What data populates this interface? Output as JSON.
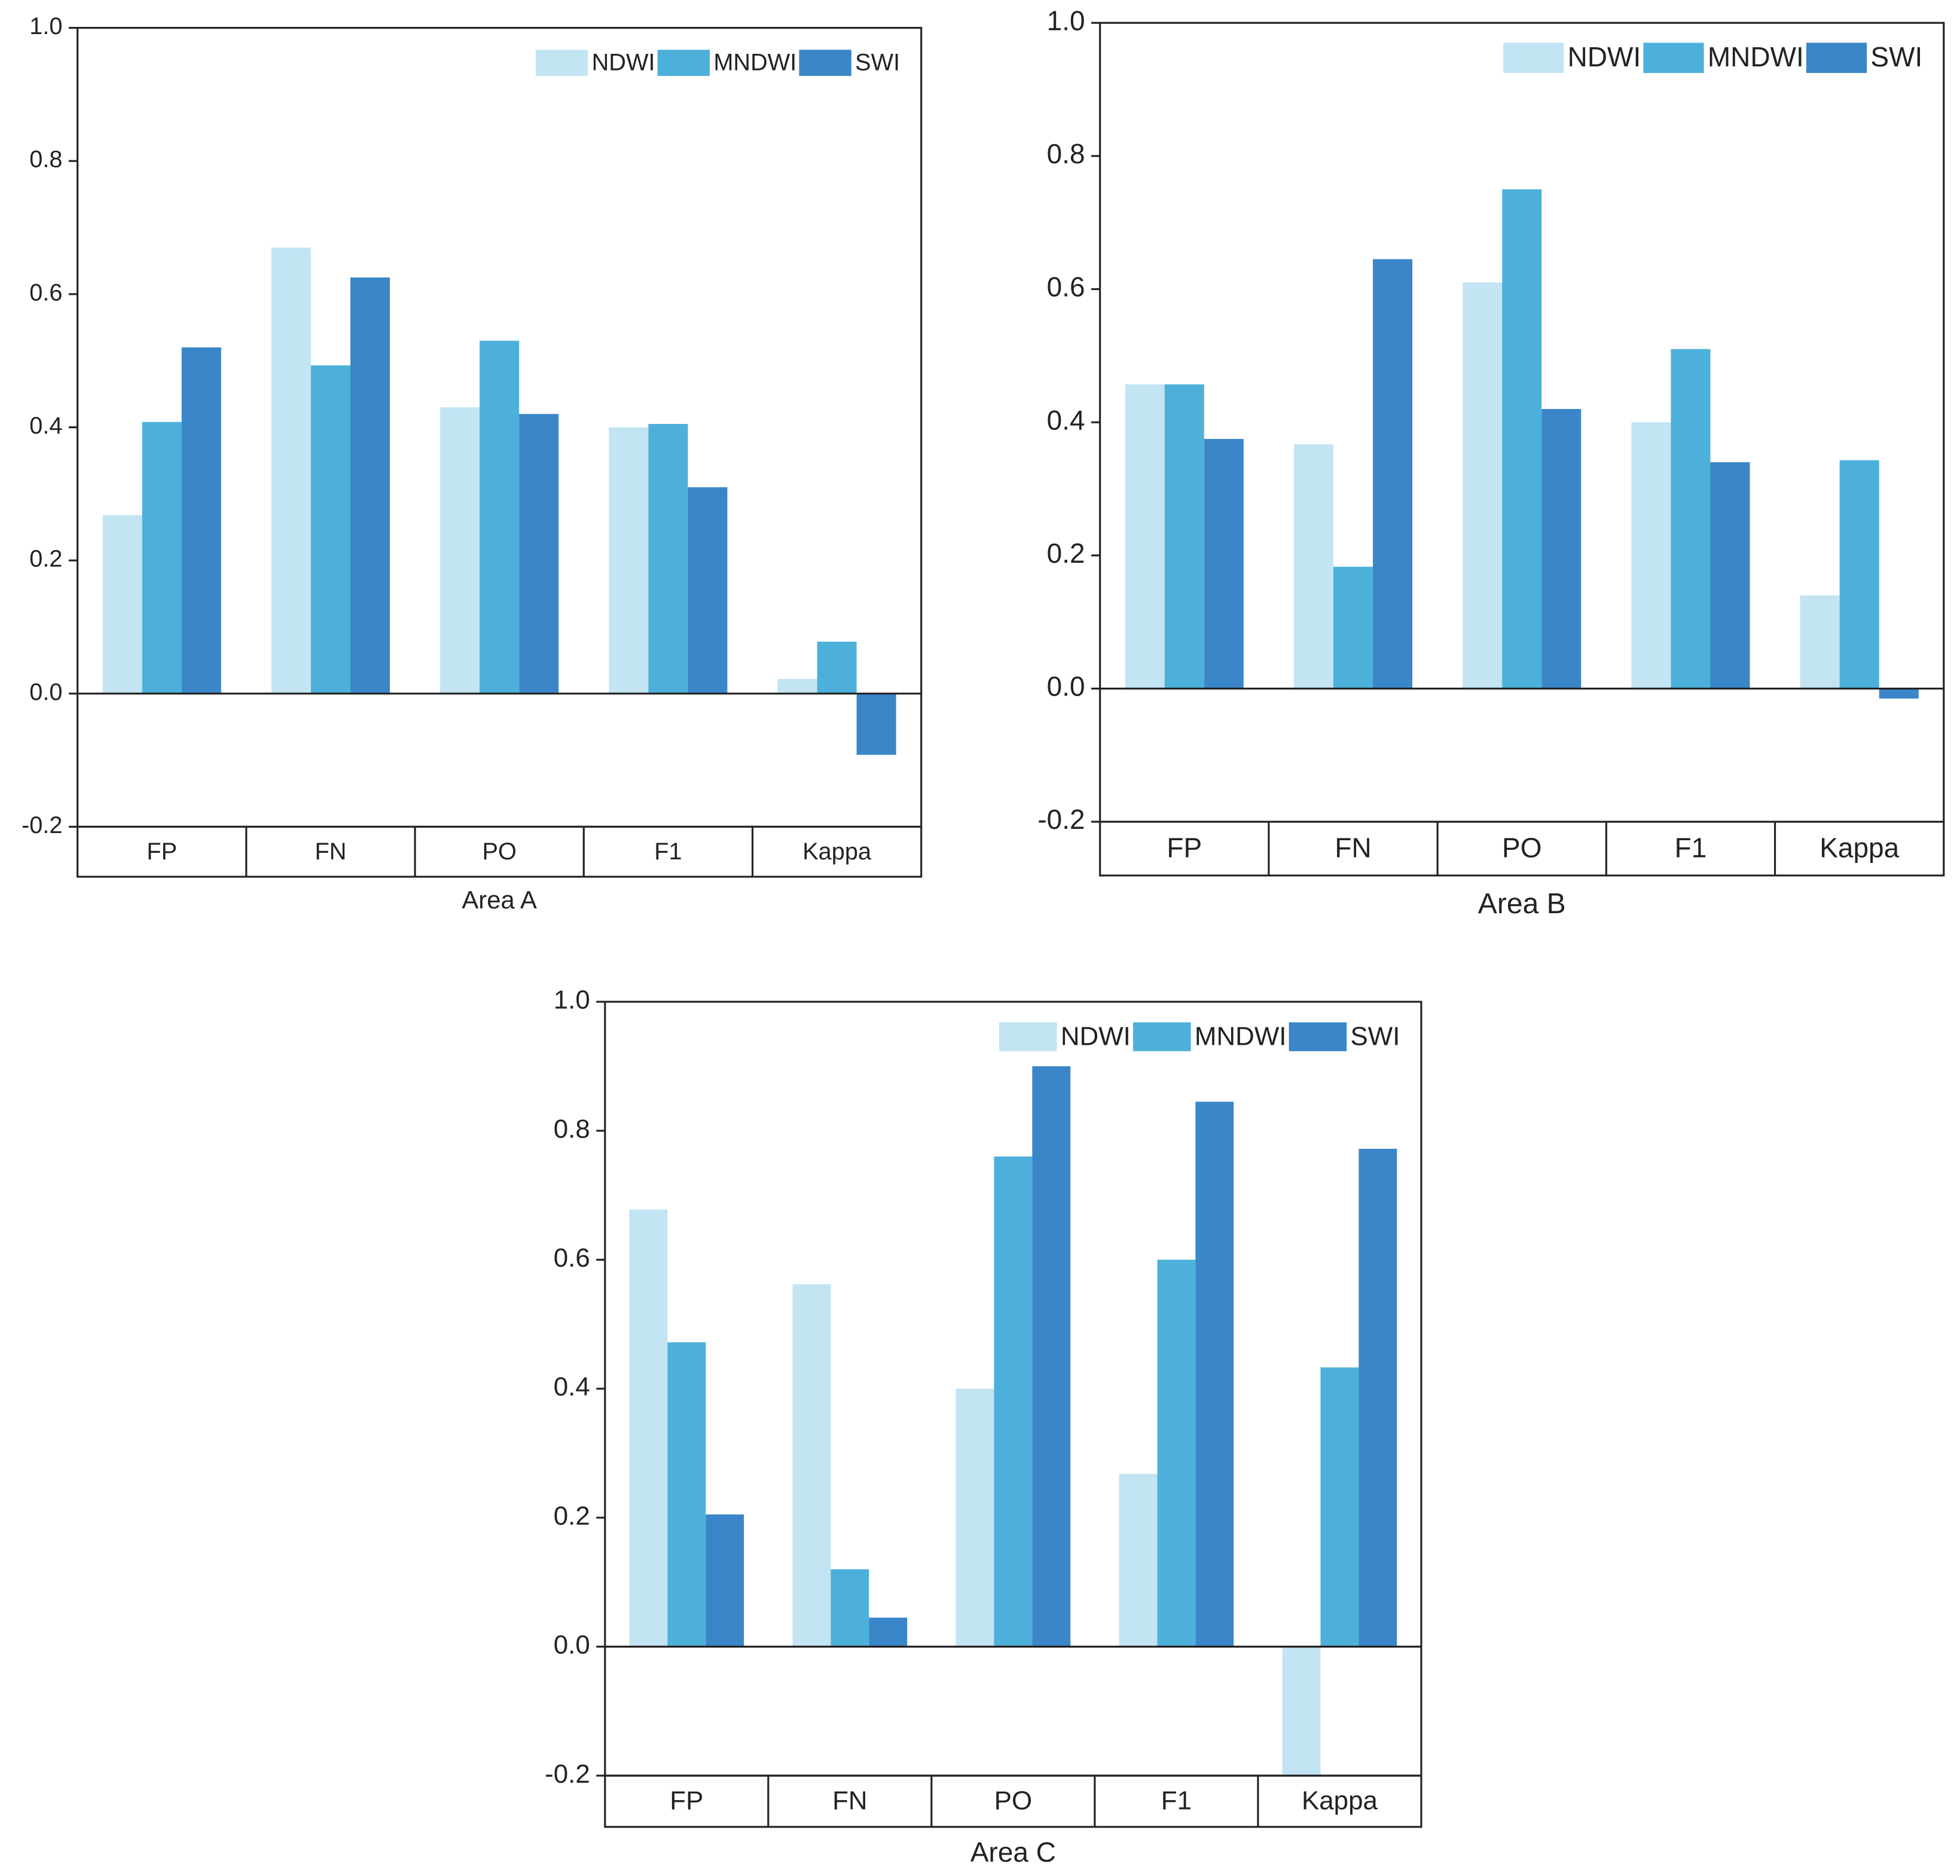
{
  "chart_data": [
    {
      "type": "bar",
      "x_label": "Area A",
      "categories": [
        "FP",
        "FN",
        "PO",
        "F1",
        "Kappa"
      ],
      "series": [
        {
          "name": "NDWI",
          "color": "#c2e4f3",
          "values": [
            0.268,
            0.67,
            0.43,
            0.4,
            0.022
          ]
        },
        {
          "name": "MNDWI",
          "color": "#4db0da",
          "values": [
            0.408,
            0.493,
            0.53,
            0.405,
            0.078
          ]
        },
        {
          "name": "SWI",
          "color": "#3a86c8",
          "values": [
            0.52,
            0.625,
            0.42,
            0.31,
            -0.092
          ]
        }
      ],
      "ylim": [
        -0.2,
        1.0
      ],
      "yticks": [
        -0.2,
        {
          "value": 0,
          "label": "0.0"
        },
        0.2,
        0.4,
        0.6,
        0.8,
        {
          "value": 1,
          "label": "1.0"
        }
      ],
      "legend": "top-right"
    },
    {
      "type": "bar",
      "x_label": "Area B",
      "categories": [
        "FP",
        "FN",
        "PO",
        "F1",
        "Kappa"
      ],
      "series": [
        {
          "name": "NDWI",
          "color": "#c2e4f3",
          "values": [
            0.457,
            0.367,
            0.61,
            0.4,
            0.14
          ]
        },
        {
          "name": "MNDWI",
          "color": "#4db0da",
          "values": [
            0.457,
            0.183,
            0.75,
            0.51,
            0.343
          ]
        },
        {
          "name": "SWI",
          "color": "#3a86c8",
          "values": [
            0.375,
            0.645,
            0.42,
            0.34,
            -0.015
          ]
        }
      ],
      "ylim": [
        -0.2,
        1.0
      ],
      "yticks": [
        -0.2,
        {
          "value": 0,
          "label": "0.0"
        },
        0.2,
        0.4,
        0.6,
        0.8,
        {
          "value": 1,
          "label": "1.0"
        }
      ],
      "legend": "top-right"
    },
    {
      "type": "bar",
      "x_label": "Area C",
      "categories": [
        "FP",
        "FN",
        "PO",
        "F1",
        "Kappa"
      ],
      "series": [
        {
          "name": "NDWI",
          "color": "#c2e4f3",
          "values": [
            0.678,
            0.562,
            0.4,
            0.268,
            -0.2
          ]
        },
        {
          "name": "MNDWI",
          "color": "#4db0da",
          "values": [
            0.472,
            0.12,
            0.76,
            0.6,
            0.433
          ]
        },
        {
          "name": "SWI",
          "color": "#3a86c8",
          "values": [
            0.205,
            0.045,
            0.9,
            0.845,
            0.772
          ]
        }
      ],
      "ylim": [
        -0.2,
        1.0
      ],
      "yticks": [
        -0.2,
        {
          "value": 0,
          "label": "0.0"
        },
        0.2,
        0.4,
        0.6,
        0.8,
        {
          "value": 1,
          "label": "1.0"
        }
      ],
      "legend": "top-right"
    }
  ]
}
